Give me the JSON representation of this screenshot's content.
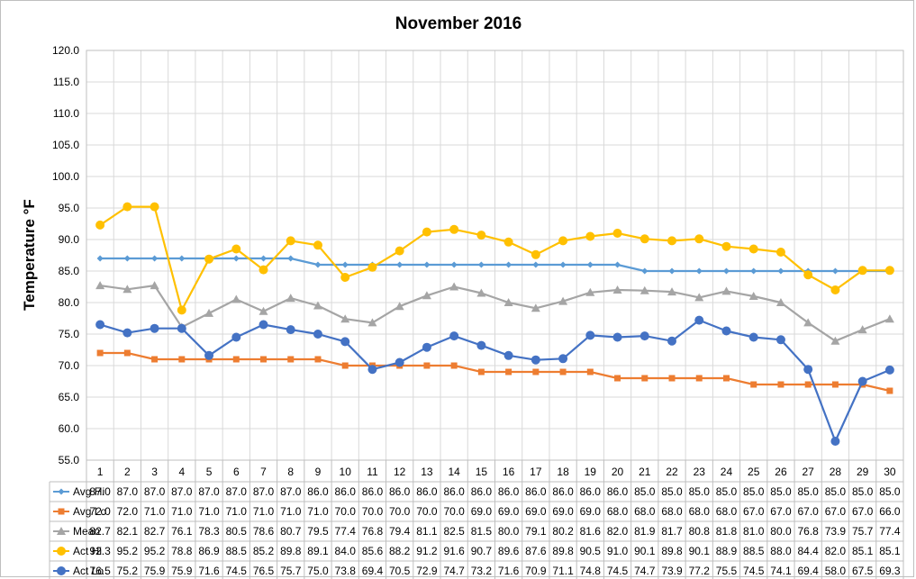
{
  "chart_data": {
    "type": "line",
    "title": "November 2016",
    "xlabel": "",
    "ylabel": "Temperature °F",
    "ylim": [
      55.0,
      120.0
    ],
    "ystep": 5.0,
    "y_tick_labels": [
      "55.0",
      "60.0",
      "65.0",
      "70.0",
      "75.0",
      "80.0",
      "85.0",
      "90.0",
      "95.0",
      "100.0",
      "105.0",
      "110.0",
      "115.0",
      "120.0"
    ],
    "grid": true,
    "legend_placement": "data-table-left",
    "categories": [
      "1",
      "2",
      "3",
      "4",
      "5",
      "6",
      "7",
      "8",
      "9",
      "10",
      "11",
      "12",
      "13",
      "14",
      "15",
      "16",
      "17",
      "18",
      "19",
      "20",
      "21",
      "22",
      "23",
      "24",
      "25",
      "26",
      "27",
      "28",
      "29",
      "30"
    ],
    "series": [
      {
        "name": "Avg Hi",
        "color": "#5b9bd5",
        "marker": "diamond",
        "values": [
          87.0,
          87.0,
          87.0,
          87.0,
          87.0,
          87.0,
          87.0,
          87.0,
          86.0,
          86.0,
          86.0,
          86.0,
          86.0,
          86.0,
          86.0,
          86.0,
          86.0,
          86.0,
          86.0,
          86.0,
          85.0,
          85.0,
          85.0,
          85.0,
          85.0,
          85.0,
          85.0,
          85.0,
          85.0,
          85.0
        ]
      },
      {
        "name": "Avg Lo",
        "color": "#ed7d31",
        "marker": "square",
        "values": [
          72.0,
          72.0,
          71.0,
          71.0,
          71.0,
          71.0,
          71.0,
          71.0,
          71.0,
          70.0,
          70.0,
          70.0,
          70.0,
          70.0,
          69.0,
          69.0,
          69.0,
          69.0,
          69.0,
          68.0,
          68.0,
          68.0,
          68.0,
          68.0,
          67.0,
          67.0,
          67.0,
          67.0,
          67.0,
          66.0
        ]
      },
      {
        "name": "Mean",
        "color": "#a5a5a5",
        "marker": "triangle",
        "values": [
          82.7,
          82.1,
          82.7,
          76.1,
          78.3,
          80.5,
          78.6,
          80.7,
          79.5,
          77.4,
          76.8,
          79.4,
          81.1,
          82.5,
          81.5,
          80.0,
          79.1,
          80.2,
          81.6,
          82.0,
          81.9,
          81.7,
          80.8,
          81.8,
          81.0,
          80.0,
          76.8,
          73.9,
          75.7,
          77.4
        ]
      },
      {
        "name": "Act Hi",
        "color": "#ffc000",
        "marker": "circle",
        "values": [
          92.3,
          95.2,
          95.2,
          78.8,
          86.9,
          88.5,
          85.2,
          89.8,
          89.1,
          84.0,
          85.6,
          88.2,
          91.2,
          91.6,
          90.7,
          89.6,
          87.6,
          89.8,
          90.5,
          91.0,
          90.1,
          89.8,
          90.1,
          88.9,
          88.5,
          88.0,
          84.4,
          82.0,
          85.1,
          85.1
        ]
      },
      {
        "name": "Act Lo",
        "color": "#4472c4",
        "marker": "circle",
        "values": [
          76.5,
          75.2,
          75.9,
          75.9,
          71.6,
          74.5,
          76.5,
          75.7,
          75.0,
          73.8,
          69.4,
          70.5,
          72.9,
          74.7,
          73.2,
          71.6,
          70.9,
          71.1,
          74.8,
          74.5,
          74.7,
          73.9,
          77.2,
          75.5,
          74.5,
          74.1,
          69.4,
          58.0,
          67.5,
          69.3
        ]
      }
    ]
  }
}
